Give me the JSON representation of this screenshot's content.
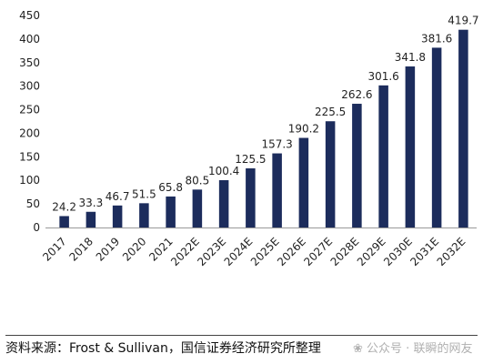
{
  "chart_data": {
    "type": "bar",
    "categories": [
      "2017",
      "2018",
      "2019",
      "2020",
      "2021",
      "2022E",
      "2023E",
      "2024E",
      "2025E",
      "2026E",
      "2027E",
      "2028E",
      "2029E",
      "2030E",
      "2031E",
      "2032E"
    ],
    "values": [
      24.2,
      33.3,
      46.7,
      51.5,
      65.8,
      80.5,
      100.4,
      125.5,
      157.3,
      190.2,
      225.5,
      262.6,
      301.6,
      341.8,
      381.6,
      419.7
    ],
    "value_labels": [
      "24.2",
      "33.3",
      "46.7",
      "51.5",
      "65.8",
      "80.5",
      "100.4",
      "125.5",
      "157.3",
      "190.2",
      "225.5",
      "262.6",
      "301.6",
      "341.8",
      "381.6",
      "419.7"
    ],
    "yticks": [
      "0",
      "50",
      "100",
      "150",
      "200",
      "250",
      "300",
      "350",
      "400",
      "450"
    ],
    "ylim": [
      0,
      450
    ],
    "title": "",
    "xlabel": "",
    "ylabel": "",
    "grid": false,
    "bar_color": "#1c2c5c"
  },
  "footer": {
    "source": "资料来源：Frost & Sullivan，国信证券经济研究所整理",
    "watermark_icon": "wechat-icon",
    "watermark": "公众号 · 联瞬的网友"
  }
}
